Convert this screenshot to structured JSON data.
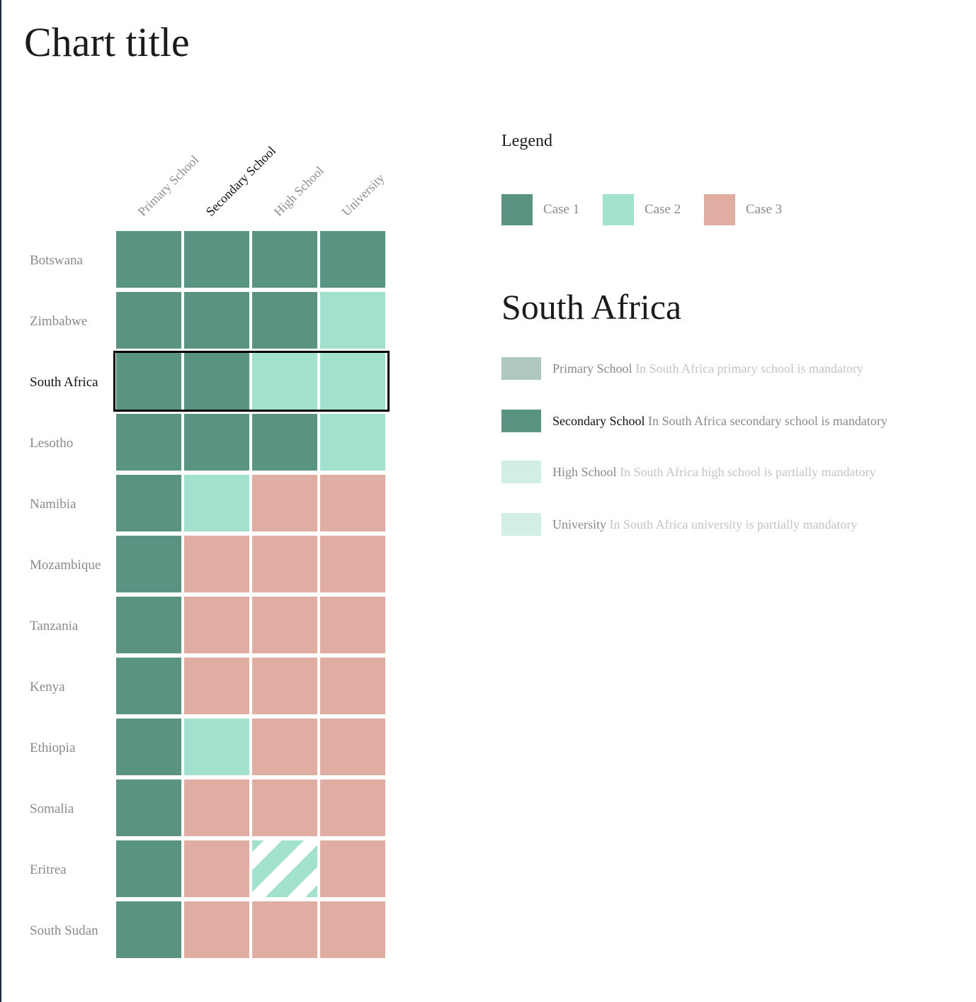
{
  "title": "Chart title",
  "legend": {
    "title": "Legend",
    "items": [
      {
        "label": "Case 1",
        "color": "#5b9382"
      },
      {
        "label": "Case 2",
        "color": "#a3e1cf"
      },
      {
        "label": "Case 3",
        "color": "#dfada1"
      }
    ]
  },
  "chart_data": {
    "type": "heatmap",
    "title": "Chart title",
    "columns": [
      "Primary School",
      "Secondary School",
      "High School",
      "University"
    ],
    "rows": [
      "Botswana",
      "Zimbabwe",
      "South Africa",
      "Lesotho",
      "Namibia",
      "Mozambique",
      "Tanzania",
      "Kenya",
      "Ethiopia",
      "Somalia",
      "Eritrea",
      "South Sudan"
    ],
    "values": [
      [
        "Case 1",
        "Case 1",
        "Case 1",
        "Case 1"
      ],
      [
        "Case 1",
        "Case 1",
        "Case 1",
        "Case 2"
      ],
      [
        "Case 1",
        "Case 1",
        "Case 2",
        "Case 2"
      ],
      [
        "Case 1",
        "Case 1",
        "Case 1",
        "Case 2"
      ],
      [
        "Case 1",
        "Case 2",
        "Case 3",
        "Case 3"
      ],
      [
        "Case 1",
        "Case 3",
        "Case 3",
        "Case 3"
      ],
      [
        "Case 1",
        "Case 3",
        "Case 3",
        "Case 3"
      ],
      [
        "Case 1",
        "Case 3",
        "Case 3",
        "Case 3"
      ],
      [
        "Case 1",
        "Case 2",
        "Case 3",
        "Case 3"
      ],
      [
        "Case 1",
        "Case 3",
        "Case 3",
        "Case 3"
      ],
      [
        "Case 1",
        "Case 3",
        "Case 2 (striped)",
        "Case 3"
      ],
      [
        "Case 1",
        "Case 3",
        "Case 3",
        "Case 3"
      ]
    ],
    "striped_cells": [
      {
        "row": "Eritrea",
        "column": "High School"
      }
    ],
    "selected_row": "South Africa",
    "highlighted_column": "Secondary School",
    "colors": {
      "Case 1": "#5b9382",
      "Case 2": "#a3e1cf",
      "Case 3": "#dfada1"
    }
  },
  "detail": {
    "country": "South Africa",
    "items": [
      {
        "level": "Primary School",
        "description": "In South Africa primary school is mandatory",
        "swatch": "#aec7bf"
      },
      {
        "level": "Secondary School",
        "description": "In South Africa secondary school is mandatory",
        "swatch": "#5b9382"
      },
      {
        "level": "High School",
        "description": "In South Africa high school is partially mandatory",
        "swatch": "#d2eee5"
      },
      {
        "level": "University",
        "description": "In South Africa university is partially mandatory",
        "swatch": "#d2eee5"
      }
    ]
  }
}
